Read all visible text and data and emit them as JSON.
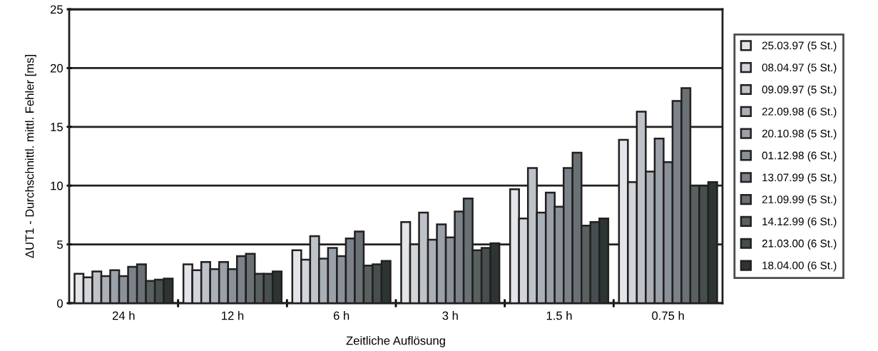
{
  "chart_data": {
    "type": "bar",
    "xlabel": "Zeitliche Auflösung",
    "ylabel": "ΔUT1 - Durchschnittl. mittl. Fehler [ms]",
    "categories": [
      "24 h",
      "12 h",
      "6 h",
      "3 h",
      "1.5 h",
      "0.75 h"
    ],
    "series": [
      {
        "name": "25.03.97 (5 St.)",
        "color": "#e3e5e9",
        "values": [
          2.5,
          3.3,
          4.5,
          6.9,
          9.7,
          13.9
        ]
      },
      {
        "name": "08.04.97 (5 St.)",
        "color": "#d2d5da",
        "values": [
          2.2,
          2.8,
          3.7,
          5.0,
          7.2,
          10.3
        ]
      },
      {
        "name": "09.09.97 (5 St.)",
        "color": "#bec3c9",
        "values": [
          2.7,
          3.5,
          5.7,
          7.7,
          11.5,
          16.3
        ]
      },
      {
        "name": "22.09.98 (6 St.)",
        "color": "#aab0b7",
        "values": [
          2.3,
          2.9,
          3.8,
          5.4,
          7.7,
          11.2
        ]
      },
      {
        "name": "20.10.98 (5 St.)",
        "color": "#9aa1a8",
        "values": [
          2.8,
          3.5,
          4.7,
          6.7,
          9.4,
          14.0
        ]
      },
      {
        "name": "01.12.98 (6 St.)",
        "color": "#8a9199",
        "values": [
          2.3,
          2.9,
          4.0,
          5.6,
          8.2,
          12.0
        ]
      },
      {
        "name": "13.07.99 (5 St.)",
        "color": "#7b8289",
        "values": [
          3.1,
          4.0,
          5.5,
          7.8,
          11.5,
          17.2
        ]
      },
      {
        "name": "21.09.99 (5 St.)",
        "color": "#6a7174",
        "values": [
          3.3,
          4.2,
          6.1,
          8.9,
          12.8,
          18.3
        ]
      },
      {
        "name": "14.12.99 (6 St.)",
        "color": "#596160",
        "values": [
          1.9,
          2.5,
          3.2,
          4.5,
          6.6,
          10.0
        ]
      },
      {
        "name": "21.03.00 (6 St.)",
        "color": "#464e4f",
        "values": [
          2.0,
          2.5,
          3.3,
          4.7,
          6.9,
          10.0
        ]
      },
      {
        "name": "18.04.00 (6 St.)",
        "color": "#2d3533",
        "values": [
          2.1,
          2.7,
          3.6,
          5.1,
          7.2,
          10.3
        ]
      }
    ],
    "ylim": [
      0,
      25
    ],
    "yticks": [
      0,
      5,
      10,
      15,
      20,
      25
    ],
    "grid": "y",
    "legend": "right"
  }
}
